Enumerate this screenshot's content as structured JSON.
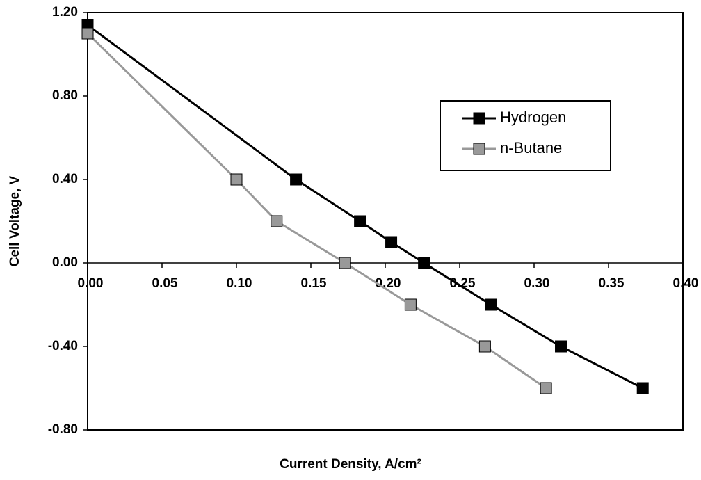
{
  "chart_data": {
    "type": "line",
    "x_label": "Current Density, A/cm²",
    "y_label": "Cell Voltage, V",
    "xlim": [
      0,
      0.4
    ],
    "ylim": [
      -0.8,
      1.2
    ],
    "xticks": [
      {
        "value": 0,
        "label": "0.00"
      },
      {
        "value": 0.05,
        "label": "0.05"
      },
      {
        "value": 0.1,
        "label": "0.10"
      },
      {
        "value": 0.15,
        "label": "0.15"
      },
      {
        "value": 0.2,
        "label": "0.20"
      },
      {
        "value": 0.25,
        "label": "0.25"
      },
      {
        "value": 0.3,
        "label": "0.30"
      },
      {
        "value": 0.35,
        "label": "0.35"
      },
      {
        "value": 0.4,
        "label": "0.40"
      }
    ],
    "yticks": [
      {
        "value": -0.8,
        "label": "-0.80"
      },
      {
        "value": -0.4,
        "label": "-0.40"
      },
      {
        "value": 0,
        "label": "0.00"
      },
      {
        "value": 0.4,
        "label": "0.40"
      },
      {
        "value": 0.8,
        "label": "0.80"
      },
      {
        "value": 1.2,
        "label": "1.20"
      }
    ],
    "grid": false,
    "legend": "upper right",
    "series": [
      {
        "name": "Hydrogen",
        "color": "#000000",
        "x": [
          0,
          0.14,
          0.183,
          0.204,
          0.226,
          0.271,
          0.318,
          0.373
        ],
        "values": [
          1.14,
          0.4,
          0.2,
          0.1,
          0,
          -0.2,
          -0.4,
          -0.6
        ]
      },
      {
        "name": "n-Butane",
        "color": "#999999",
        "x": [
          0,
          0.1,
          0.127,
          0.173,
          0.217,
          0.267,
          0.308
        ],
        "values": [
          1.1,
          0.4,
          0.2,
          0,
          -0.2,
          -0.4,
          -0.6
        ]
      }
    ]
  }
}
